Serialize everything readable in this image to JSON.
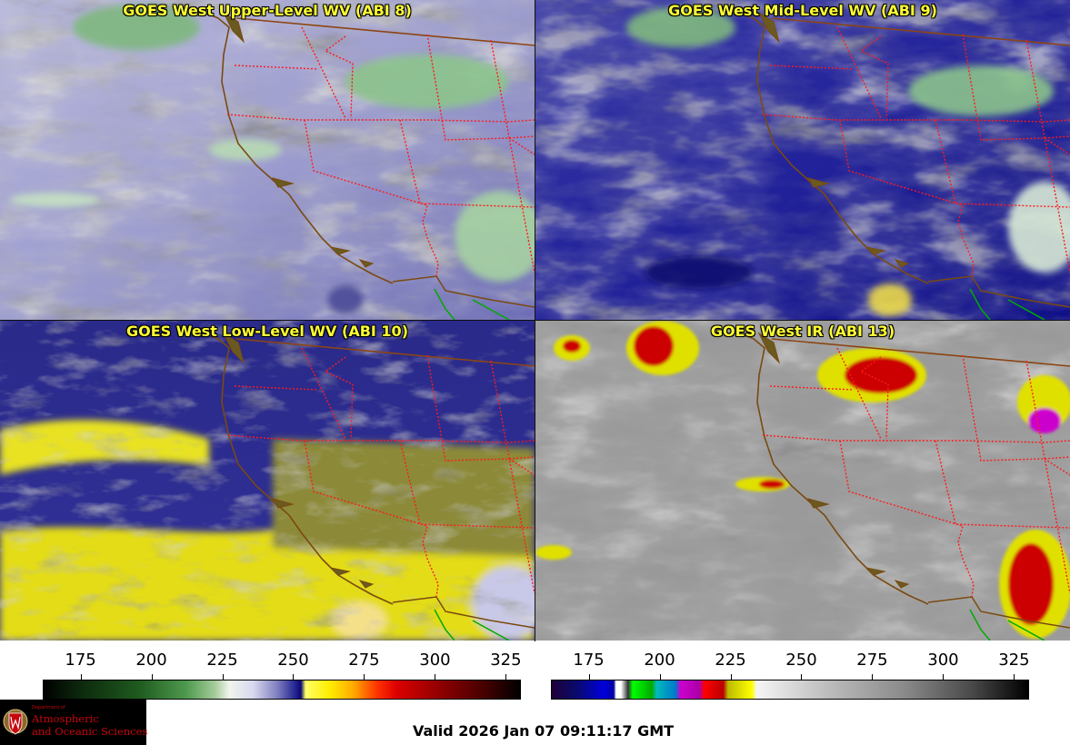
{
  "panels": [
    {
      "id": "tl",
      "title": "GOES West Upper-Level WV (ABI 8)"
    },
    {
      "id": "tr",
      "title": "GOES West Mid-Level WV (ABI 9)"
    },
    {
      "id": "bl",
      "title": "GOES West Low-Level WV (ABI 10)"
    },
    {
      "id": "br",
      "title": "GOES West IR (ABI 13)"
    }
  ],
  "colorbars": {
    "water_vapor": {
      "ticks": [
        175,
        200,
        225,
        250,
        275,
        300,
        325
      ],
      "range": [
        162,
        330
      ]
    },
    "infrared": {
      "ticks": [
        175,
        200,
        225,
        250,
        275,
        300,
        325
      ],
      "range": [
        162,
        330
      ]
    }
  },
  "footer": {
    "valid_time": "Valid 2026 Jan 07 09:11:17 GMT",
    "logo": {
      "dept": "Department of",
      "line1": "Atmospheric",
      "line2": "and Oceanic Sciences"
    }
  },
  "colors": {
    "title_text": "#ffff33",
    "state_borders": "#ff1a1a",
    "coastline": "#7a4a10",
    "mexico_border": "#00aa00"
  }
}
